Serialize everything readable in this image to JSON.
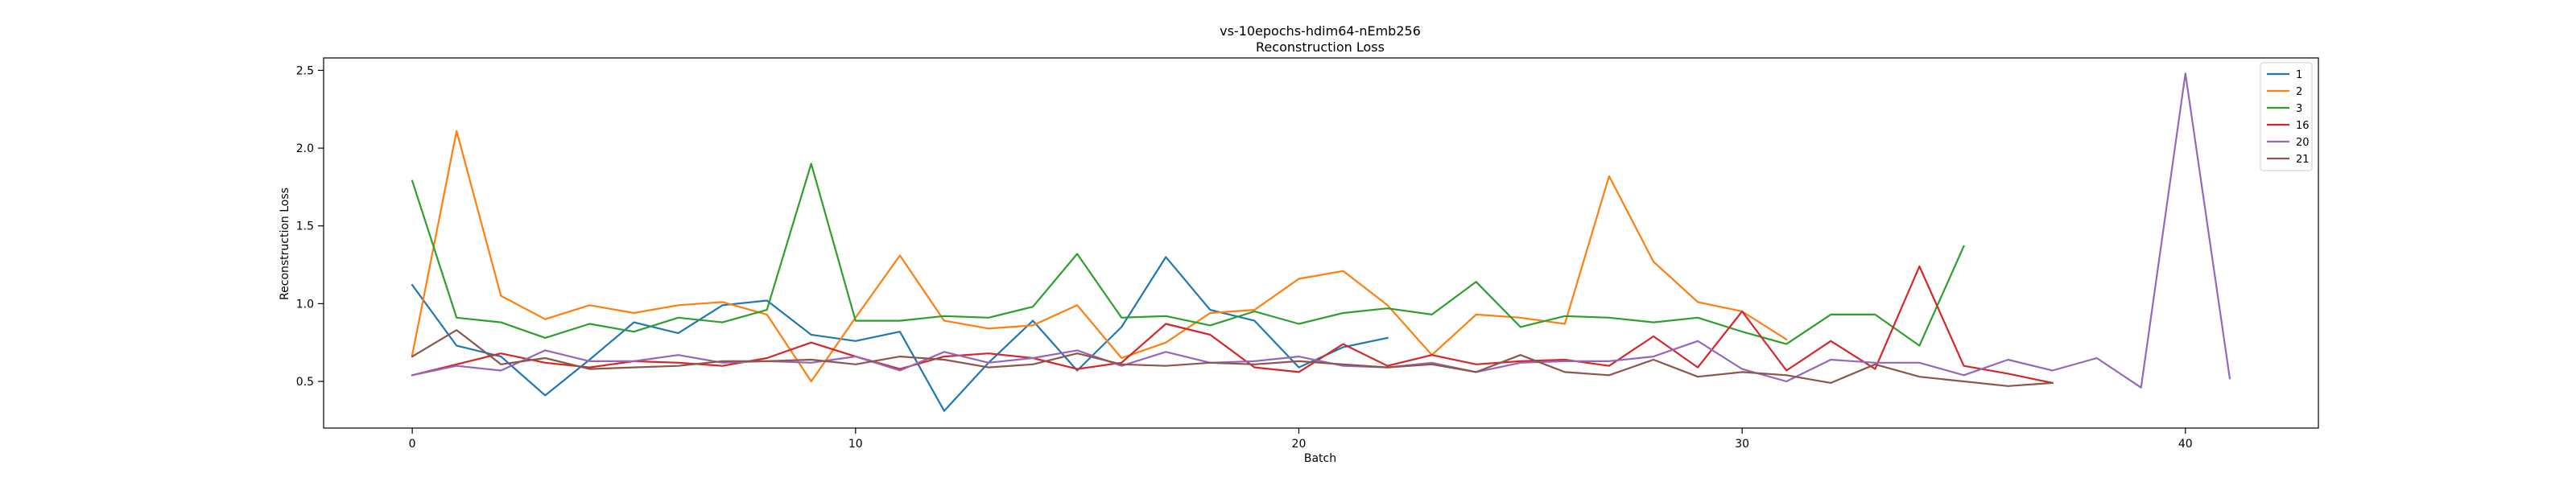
{
  "chart_data": {
    "type": "line",
    "title": "vs-10epochs-hdim64-nEmb256",
    "subtitle": "Reconstruction Loss",
    "xlabel": "Batch",
    "ylabel": "Reconstruction Loss",
    "xlim": [
      -2,
      43
    ],
    "ylim": [
      0.2,
      2.58
    ],
    "xticks": [
      0,
      10,
      20,
      30,
      40
    ],
    "yticks": [
      0.5,
      1.0,
      1.5,
      2.0,
      2.5
    ],
    "ytick_labels": [
      "0.5",
      "1.0",
      "1.5",
      "2.0",
      "2.5"
    ],
    "grid": false,
    "legend": "top-right",
    "series": [
      {
        "name": "1",
        "color": "#1f77b4",
        "values": [
          1.12,
          0.73,
          0.66,
          0.41,
          0.64,
          0.88,
          0.81,
          0.99,
          1.02,
          0.8,
          0.76,
          0.82,
          0.31,
          0.62,
          0.89,
          0.57,
          0.85,
          1.3,
          0.96,
          0.89,
          0.59,
          0.72,
          0.78
        ]
      },
      {
        "name": "2",
        "color": "#ff7f0e",
        "values": [
          0.67,
          2.11,
          1.05,
          0.9,
          0.99,
          0.94,
          0.99,
          1.01,
          0.93,
          0.5,
          0.91,
          1.31,
          0.89,
          0.84,
          0.86,
          0.99,
          0.65,
          0.75,
          0.94,
          0.96,
          1.16,
          1.21,
          0.99,
          0.67,
          0.93,
          0.91,
          0.87,
          1.82,
          1.27,
          1.01,
          0.95,
          0.77
        ]
      },
      {
        "name": "3",
        "color": "#2ca02c",
        "values": [
          1.79,
          0.91,
          0.88,
          0.78,
          0.87,
          0.82,
          0.91,
          0.88,
          0.96,
          1.9,
          0.89,
          0.89,
          0.92,
          0.91,
          0.98,
          1.32,
          0.91,
          0.92,
          0.86,
          0.95,
          0.87,
          0.94,
          0.97,
          0.93,
          1.14,
          0.85,
          0.92,
          0.91,
          0.88,
          0.91,
          0.82,
          0.74,
          0.93,
          0.93,
          0.73,
          1.37
        ]
      },
      {
        "name": "16",
        "color": "#d62728",
        "values": [
          0.54,
          0.61,
          0.68,
          0.62,
          0.59,
          0.63,
          0.62,
          0.6,
          0.65,
          0.75,
          0.66,
          0.58,
          0.66,
          0.68,
          0.65,
          0.58,
          0.62,
          0.87,
          0.8,
          0.59,
          0.56,
          0.74,
          0.6,
          0.67,
          0.61,
          0.63,
          0.64,
          0.6,
          0.79,
          0.59,
          0.95,
          0.57,
          0.76,
          0.58,
          1.24,
          0.6,
          0.55,
          0.49
        ]
      },
      {
        "name": "20",
        "color": "#9467bd",
        "values": [
          0.54,
          0.6,
          0.57,
          0.7,
          0.63,
          0.63,
          0.67,
          0.62,
          0.63,
          0.62,
          0.66,
          0.57,
          0.69,
          0.62,
          0.65,
          0.7,
          0.6,
          0.69,
          0.62,
          0.63,
          0.66,
          0.6,
          0.59,
          0.62,
          0.56,
          0.62,
          0.63,
          0.63,
          0.66,
          0.76,
          0.58,
          0.5,
          0.64,
          0.62,
          0.62,
          0.54,
          0.64,
          0.57,
          0.65,
          0.46,
          2.48,
          0.52
        ]
      },
      {
        "name": "21",
        "color": "#8c564b",
        "values": [
          0.66,
          0.83,
          0.61,
          0.65,
          0.58,
          0.59,
          0.6,
          0.63,
          0.63,
          0.64,
          0.61,
          0.66,
          0.64,
          0.59,
          0.61,
          0.68,
          0.61,
          0.6,
          0.62,
          0.61,
          0.63,
          0.61,
          0.59,
          0.61,
          0.56,
          0.67,
          0.56,
          0.54,
          0.64,
          0.53,
          0.56,
          0.54,
          0.49,
          0.61,
          0.53,
          0.5,
          0.47,
          0.49
        ]
      }
    ]
  }
}
